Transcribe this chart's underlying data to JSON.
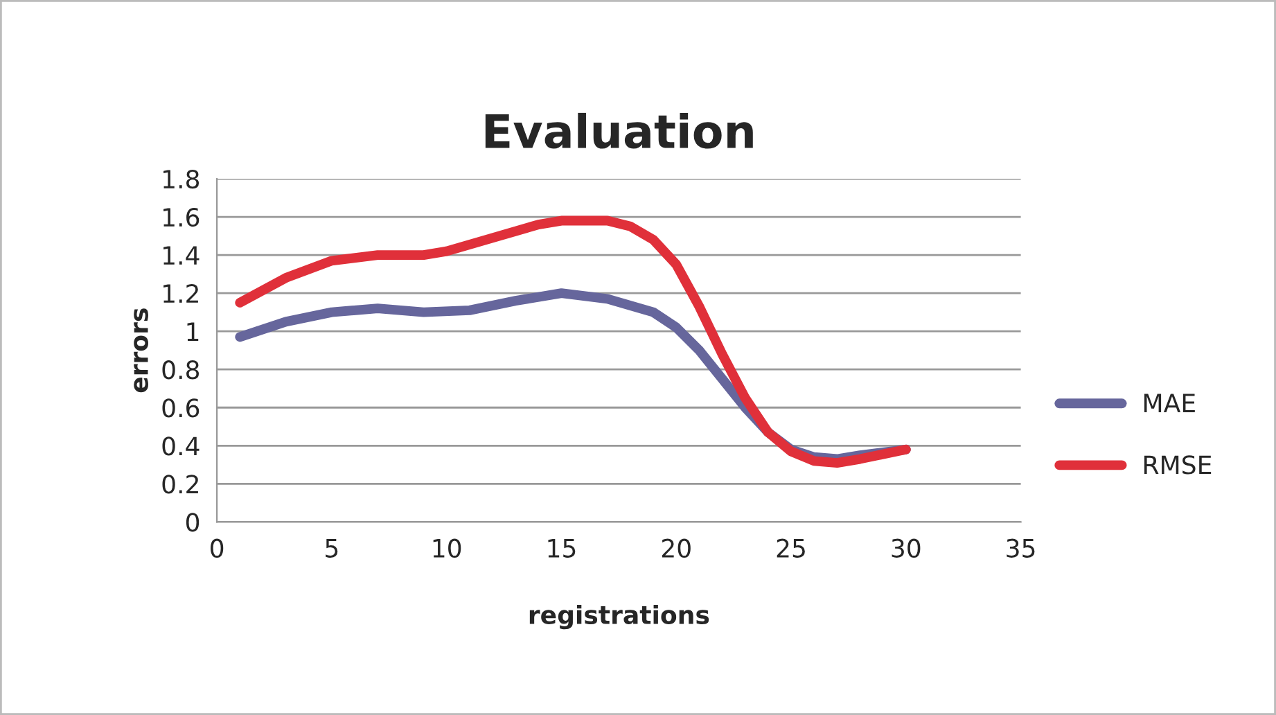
{
  "chart_data": {
    "type": "line",
    "title": "Evaluation",
    "xlabel": "registrations",
    "ylabel": "errors",
    "series": [
      {
        "name": "MAE",
        "color": "#66669c",
        "x": [
          1,
          3,
          5,
          7,
          9,
          11,
          13,
          15,
          17,
          19,
          20,
          21,
          22,
          23,
          24,
          25,
          26,
          27,
          28,
          30
        ],
        "values": [
          0.97,
          1.05,
          1.1,
          1.12,
          1.1,
          1.11,
          1.16,
          1.2,
          1.17,
          1.1,
          1.02,
          0.9,
          0.75,
          0.6,
          0.47,
          0.38,
          0.34,
          0.33,
          0.35,
          0.38
        ]
      },
      {
        "name": "RMSE",
        "color": "#e0303a",
        "x": [
          1,
          3,
          5,
          7,
          9,
          10,
          12,
          14,
          15,
          17,
          18,
          19,
          20,
          21,
          22,
          23,
          24,
          25,
          26,
          27,
          28,
          30
        ],
        "values": [
          1.15,
          1.28,
          1.37,
          1.4,
          1.4,
          1.42,
          1.49,
          1.56,
          1.58,
          1.58,
          1.55,
          1.48,
          1.35,
          1.13,
          0.88,
          0.65,
          0.47,
          0.37,
          0.32,
          0.31,
          0.33,
          0.38
        ]
      }
    ],
    "xlim": [
      0,
      35
    ],
    "xticks": [
      0,
      5,
      10,
      15,
      20,
      25,
      30,
      35
    ],
    "ylim": [
      0,
      1.8
    ],
    "yticks": [
      0,
      0.2,
      0.4,
      0.6,
      0.8,
      1,
      1.2,
      1.4,
      1.6,
      1.8
    ],
    "grid": "y",
    "legend": "right",
    "marker": "none",
    "line_style": "solid"
  }
}
